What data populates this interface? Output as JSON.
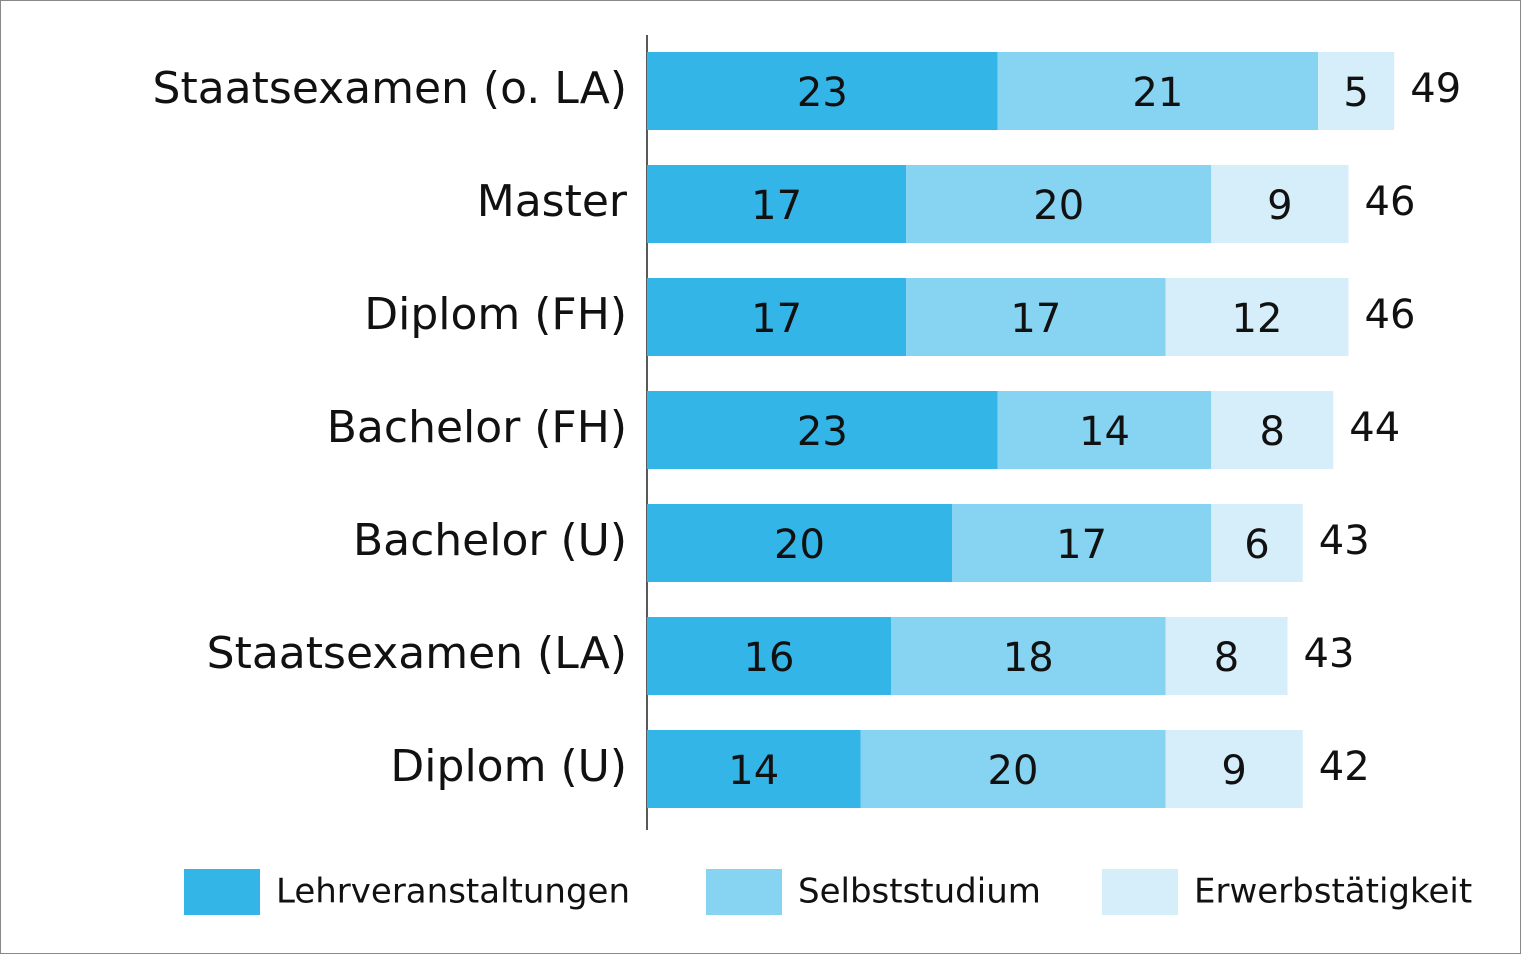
{
  "chart_data": {
    "type": "stacked-barh",
    "categories": [
      "Staatsexamen (o. LA)",
      "Master",
      "Diplom (FH)",
      "Bachelor (FH)",
      "Bachelor (U)",
      "Staatsexamen (LA)",
      "Diplom (U)"
    ],
    "series": [
      {
        "name": "Lehrveranstaltungen",
        "color": "#34b5e8",
        "values": [
          23,
          17,
          17,
          23,
          20,
          16,
          14
        ]
      },
      {
        "name": "Selbststudium",
        "color": "#87d3f2",
        "values": [
          21,
          20,
          17,
          14,
          17,
          18,
          20
        ]
      },
      {
        "name": "Erwerbstätigkeit",
        "color": "#d5eef9",
        "values": [
          5,
          9,
          12,
          8,
          6,
          8,
          9
        ]
      }
    ],
    "totals": [
      49,
      46,
      46,
      44,
      43,
      43,
      42
    ],
    "legend": "bottom"
  }
}
